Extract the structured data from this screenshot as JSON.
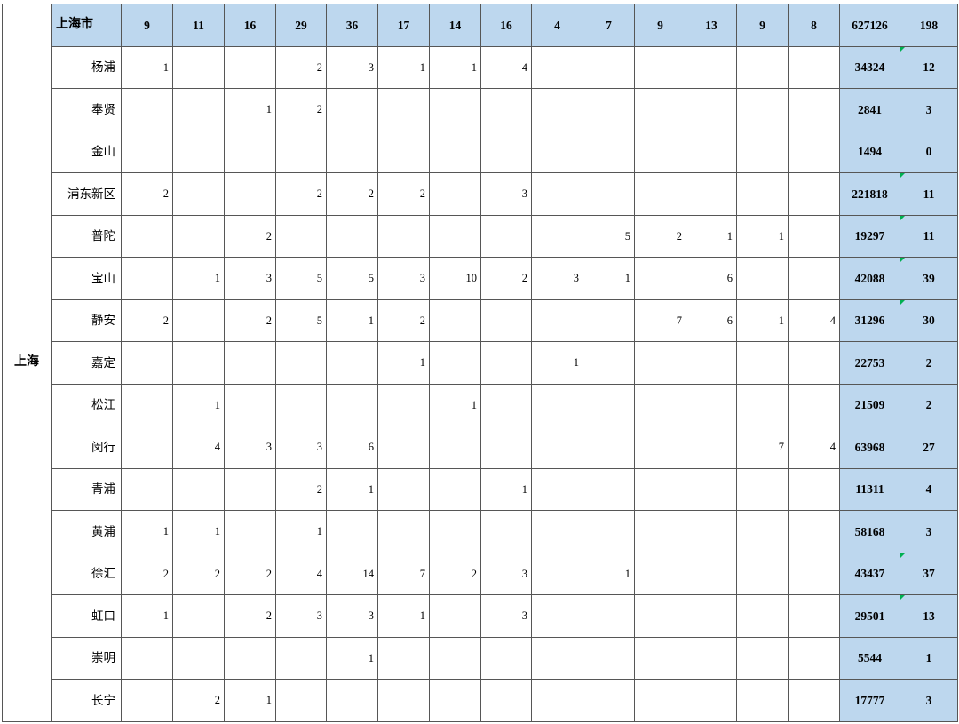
{
  "province": "上海",
  "header": {
    "label": "上海市",
    "values": [
      "9",
      "11",
      "16",
      "29",
      "36",
      "17",
      "14",
      "16",
      "4",
      "7",
      "9",
      "13",
      "9",
      "8"
    ],
    "total": "627126",
    "count": "198"
  },
  "rows": [
    {
      "district": "杨浦",
      "values": [
        "1",
        "",
        "",
        "2",
        "3",
        "1",
        "1",
        "4",
        "",
        "",
        "",
        "",
        "",
        ""
      ],
      "total": "34324",
      "count": "12",
      "flag": true
    },
    {
      "district": "奉贤",
      "values": [
        "",
        "",
        "1",
        "2",
        "",
        "",
        "",
        "",
        "",
        "",
        "",
        "",
        "",
        ""
      ],
      "total": "2841",
      "count": "3",
      "flag": false
    },
    {
      "district": "金山",
      "values": [
        "",
        "",
        "",
        "",
        "",
        "",
        "",
        "",
        "",
        "",
        "",
        "",
        "",
        ""
      ],
      "total": "1494",
      "count": "0",
      "flag": false
    },
    {
      "district": "浦东新区",
      "values": [
        "2",
        "",
        "",
        "2",
        "2",
        "2",
        "",
        "3",
        "",
        "",
        "",
        "",
        "",
        ""
      ],
      "total": "221818",
      "count": "11",
      "flag": true
    },
    {
      "district": "普陀",
      "values": [
        "",
        "",
        "2",
        "",
        "",
        "",
        "",
        "",
        "",
        "5",
        "2",
        "1",
        "1",
        ""
      ],
      "total": "19297",
      "count": "11",
      "flag": true
    },
    {
      "district": "宝山",
      "values": [
        "",
        "1",
        "3",
        "5",
        "5",
        "3",
        "10",
        "2",
        "3",
        "1",
        "",
        "6",
        "",
        ""
      ],
      "total": "42088",
      "count": "39",
      "flag": true
    },
    {
      "district": "静安",
      "values": [
        "2",
        "",
        "2",
        "5",
        "1",
        "2",
        "",
        "",
        "",
        "",
        "7",
        "6",
        "1",
        "4"
      ],
      "total": "31296",
      "count": "30",
      "flag": true
    },
    {
      "district": "嘉定",
      "values": [
        "",
        "",
        "",
        "",
        "",
        "1",
        "",
        "",
        "1",
        "",
        "",
        "",
        "",
        ""
      ],
      "total": "22753",
      "count": "2",
      "flag": false
    },
    {
      "district": "松江",
      "values": [
        "",
        "1",
        "",
        "",
        "",
        "",
        "1",
        "",
        "",
        "",
        "",
        "",
        "",
        ""
      ],
      "total": "21509",
      "count": "2",
      "flag": false
    },
    {
      "district": "闵行",
      "values": [
        "",
        "4",
        "3",
        "3",
        "6",
        "",
        "",
        "",
        "",
        "",
        "",
        "",
        "7",
        "4"
      ],
      "total": "63968",
      "count": "27",
      "flag": false
    },
    {
      "district": "青浦",
      "values": [
        "",
        "",
        "",
        "2",
        "1",
        "",
        "",
        "1",
        "",
        "",
        "",
        "",
        "",
        ""
      ],
      "total": "11311",
      "count": "4",
      "flag": false
    },
    {
      "district": "黄浦",
      "values": [
        "1",
        "1",
        "",
        "1",
        "",
        "",
        "",
        "",
        "",
        "",
        "",
        "",
        "",
        ""
      ],
      "total": "58168",
      "count": "3",
      "flag": false
    },
    {
      "district": "徐汇",
      "values": [
        "2",
        "2",
        "2",
        "4",
        "14",
        "7",
        "2",
        "3",
        "",
        "1",
        "",
        "",
        "",
        ""
      ],
      "total": "43437",
      "count": "37",
      "flag": true
    },
    {
      "district": "虹口",
      "values": [
        "1",
        "",
        "2",
        "3",
        "3",
        "1",
        "",
        "3",
        "",
        "",
        "",
        "",
        "",
        ""
      ],
      "total": "29501",
      "count": "13",
      "flag": true
    },
    {
      "district": "崇明",
      "values": [
        "",
        "",
        "",
        "",
        "1",
        "",
        "",
        "",
        "",
        "",
        "",
        "",
        "",
        ""
      ],
      "total": "5544",
      "count": "1",
      "flag": false
    },
    {
      "district": "长宁",
      "values": [
        "",
        "2",
        "1",
        "",
        "",
        "",
        "",
        "",
        "",
        "",
        "",
        "",
        "",
        ""
      ],
      "total": "17777",
      "count": "3",
      "flag": false
    }
  ],
  "colors": {
    "header_fill": "#BDD7EE",
    "grid_line": "#565656",
    "flag_green": "#00B050"
  },
  "icons": {
    "error_indicator": "green corner triangle"
  }
}
